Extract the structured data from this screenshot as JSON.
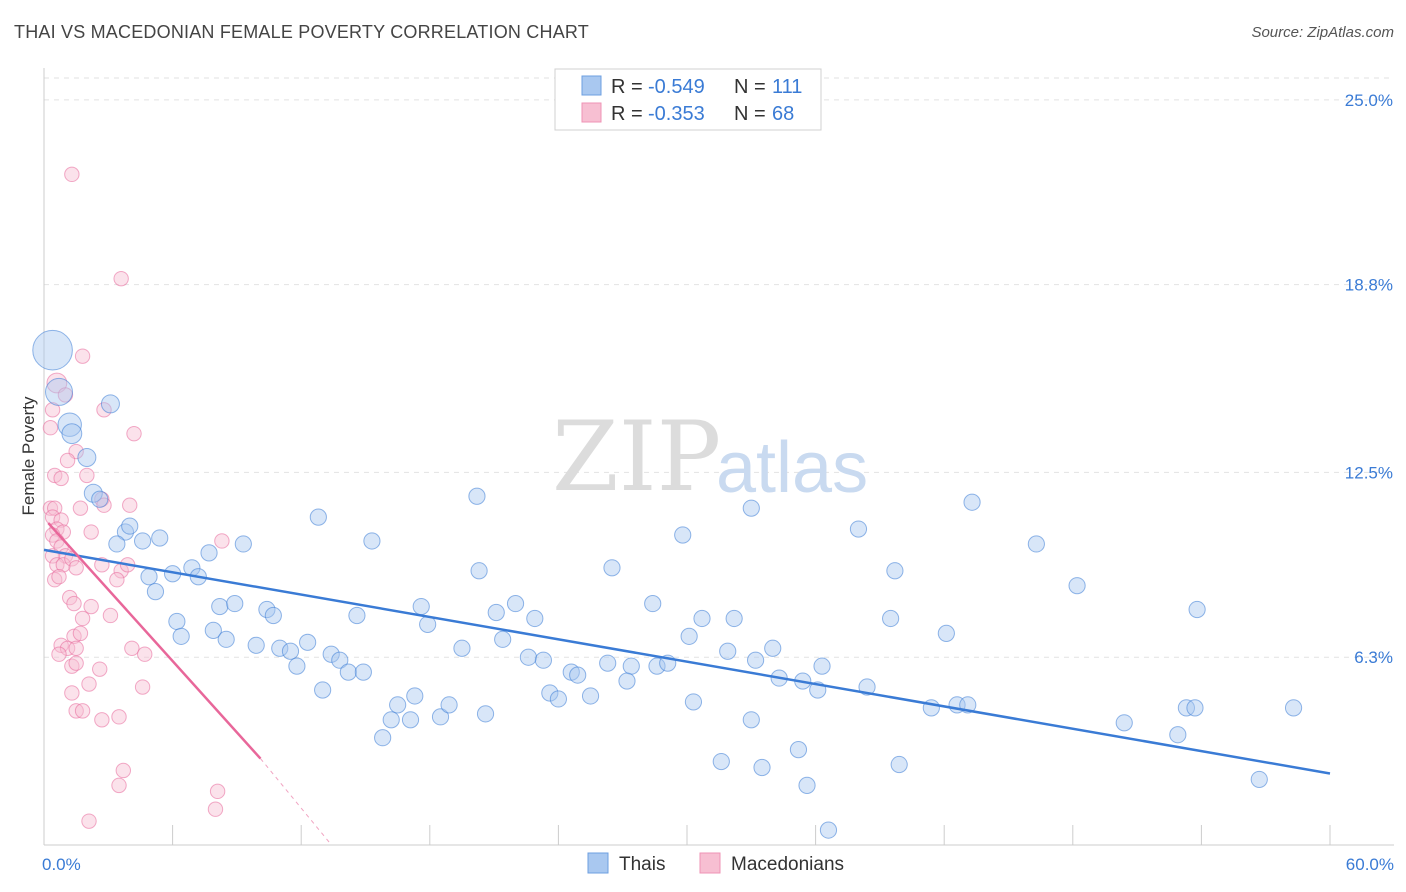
{
  "header": {
    "title": "THAI VS MACEDONIAN FEMALE POVERTY CORRELATION CHART",
    "source": "Source: ZipAtlas.com"
  },
  "watermark": {
    "zip": "ZIP",
    "atlas": "atlas"
  },
  "legend": {
    "rows": [
      {
        "r_label": "R =",
        "r_value": "-0.549",
        "n_label": "N =",
        "n_value": "111",
        "color": "#a9c8f0"
      },
      {
        "r_label": "R =",
        "r_value": "-0.353",
        "n_label": "N =",
        "n_value": "68",
        "color": "#f7bfd2"
      }
    ]
  },
  "bottom_legend": {
    "items": [
      {
        "label": "Thais",
        "color": "#a9c8f0"
      },
      {
        "label": "Macedonians",
        "color": "#f7bfd2"
      }
    ]
  },
  "chart_data": {
    "type": "scatter",
    "ylabel": "Female Poverty",
    "xlim": [
      0,
      60
    ],
    "ylim": [
      0,
      25.9
    ],
    "x_tick_labels": [
      {
        "value": 0,
        "label": "0.0%"
      },
      {
        "value": 60,
        "label": "60.0%"
      }
    ],
    "y_tick_labels": [
      {
        "value": 25.0,
        "label": "25.0%"
      },
      {
        "value": 18.8,
        "label": "18.8%"
      },
      {
        "value": 12.5,
        "label": "12.5%"
      },
      {
        "value": 6.3,
        "label": "6.3%"
      }
    ],
    "grid": true,
    "colors": {
      "thais": "#3a7bd5",
      "thais_fill": "#a9c8f0",
      "macedonians": "#e8679a",
      "macedonians_fill": "#f7bfd2"
    },
    "series": [
      {
        "name": "Thais",
        "trendline": {
          "x": [
            0,
            60
          ],
          "y": [
            9.9,
            2.4
          ]
        },
        "points": [
          [
            0.4,
            16.6,
            2.2
          ],
          [
            0.7,
            15.2,
            1.5
          ],
          [
            1.2,
            14.1,
            1.3
          ],
          [
            1.3,
            13.8,
            1.1
          ],
          [
            3.1,
            14.8,
            1.0
          ],
          [
            2.0,
            13.0,
            1.0
          ],
          [
            2.3,
            11.8,
            1.0
          ],
          [
            2.6,
            11.6,
            0.9
          ],
          [
            3.8,
            10.5,
            0.9
          ],
          [
            4.0,
            10.7,
            0.9
          ],
          [
            3.4,
            10.1,
            0.9
          ],
          [
            4.6,
            10.2,
            0.9
          ],
          [
            5.4,
            10.3,
            0.9
          ],
          [
            4.9,
            9.0,
            0.9
          ],
          [
            5.2,
            8.5,
            0.9
          ],
          [
            6.0,
            9.1,
            0.9
          ],
          [
            6.9,
            9.3,
            0.9
          ],
          [
            7.7,
            9.8,
            0.9
          ],
          [
            9.3,
            10.1,
            0.9
          ],
          [
            7.2,
            9.0,
            0.9
          ],
          [
            8.2,
            8.0,
            0.9
          ],
          [
            8.9,
            8.1,
            0.9
          ],
          [
            6.2,
            7.5,
            0.9
          ],
          [
            6.4,
            7.0,
            0.9
          ],
          [
            7.9,
            7.2,
            0.9
          ],
          [
            8.5,
            6.9,
            0.9
          ],
          [
            10.4,
            7.9,
            0.9
          ],
          [
            10.7,
            7.7,
            0.9
          ],
          [
            9.9,
            6.7,
            0.9
          ],
          [
            11.0,
            6.6,
            0.9
          ],
          [
            11.5,
            6.5,
            0.9
          ],
          [
            11.8,
            6.0,
            0.9
          ],
          [
            12.3,
            6.8,
            0.9
          ],
          [
            13.0,
            5.2,
            0.9
          ],
          [
            13.4,
            6.4,
            0.9
          ],
          [
            13.8,
            6.2,
            0.9
          ],
          [
            14.2,
            5.8,
            0.9
          ],
          [
            14.9,
            5.8,
            0.9
          ],
          [
            14.6,
            7.7,
            0.9
          ],
          [
            12.8,
            11.0,
            0.9
          ],
          [
            15.3,
            10.2,
            0.9
          ],
          [
            15.8,
            3.6,
            0.9
          ],
          [
            16.2,
            4.2,
            0.9
          ],
          [
            16.5,
            4.7,
            0.9
          ],
          [
            17.1,
            4.2,
            0.9
          ],
          [
            17.3,
            5.0,
            0.9
          ],
          [
            17.6,
            8.0,
            0.9
          ],
          [
            17.9,
            7.4,
            0.9
          ],
          [
            18.5,
            4.3,
            0.9
          ],
          [
            18.9,
            4.7,
            0.9
          ],
          [
            19.5,
            6.6,
            0.9
          ],
          [
            20.2,
            11.7,
            0.9
          ],
          [
            20.3,
            9.2,
            0.9
          ],
          [
            20.6,
            4.4,
            0.9
          ],
          [
            21.1,
            7.8,
            0.9
          ],
          [
            21.4,
            6.9,
            0.9
          ],
          [
            22.0,
            8.1,
            0.9
          ],
          [
            22.6,
            6.3,
            0.9
          ],
          [
            22.9,
            7.6,
            0.9
          ],
          [
            23.3,
            6.2,
            0.9
          ],
          [
            23.6,
            5.1,
            0.9
          ],
          [
            24.0,
            4.9,
            0.9
          ],
          [
            24.6,
            5.8,
            0.9
          ],
          [
            24.9,
            5.7,
            0.9
          ],
          [
            25.5,
            5.0,
            0.9
          ],
          [
            26.3,
            6.1,
            0.9
          ],
          [
            26.5,
            9.3,
            0.9
          ],
          [
            27.4,
            6.0,
            0.9
          ],
          [
            27.2,
            5.5,
            0.9
          ],
          [
            28.4,
            8.1,
            0.9
          ],
          [
            28.6,
            6.0,
            0.9
          ],
          [
            29.1,
            6.1,
            0.9
          ],
          [
            29.8,
            10.4,
            0.9
          ],
          [
            30.1,
            7.0,
            0.9
          ],
          [
            30.3,
            4.8,
            0.9
          ],
          [
            30.7,
            7.6,
            0.9
          ],
          [
            31.6,
            2.8,
            0.9
          ],
          [
            31.9,
            6.5,
            0.9
          ],
          [
            32.2,
            7.6,
            0.9
          ],
          [
            33.0,
            11.3,
            0.9
          ],
          [
            33.2,
            6.2,
            0.9
          ],
          [
            33.0,
            4.2,
            0.9
          ],
          [
            33.5,
            2.6,
            0.9
          ],
          [
            34.0,
            6.6,
            0.9
          ],
          [
            34.3,
            5.6,
            0.9
          ],
          [
            35.2,
            3.2,
            0.9
          ],
          [
            35.4,
            5.5,
            0.9
          ],
          [
            35.6,
            2.0,
            0.9
          ],
          [
            36.1,
            5.2,
            0.9
          ],
          [
            36.3,
            6.0,
            0.9
          ],
          [
            36.6,
            0.5,
            0.9
          ],
          [
            38.0,
            10.6,
            0.9
          ],
          [
            38.4,
            5.3,
            0.9
          ],
          [
            39.5,
            7.6,
            0.9
          ],
          [
            39.7,
            9.2,
            0.9
          ],
          [
            39.9,
            2.7,
            0.9
          ],
          [
            41.4,
            4.6,
            0.9
          ],
          [
            42.1,
            7.1,
            0.9
          ],
          [
            42.6,
            4.7,
            0.9
          ],
          [
            43.1,
            4.7,
            0.9
          ],
          [
            43.3,
            11.5,
            0.9
          ],
          [
            46.3,
            10.1,
            0.9
          ],
          [
            48.2,
            8.7,
            0.9
          ],
          [
            50.4,
            4.1,
            0.9
          ],
          [
            52.9,
            3.7,
            0.9
          ],
          [
            53.3,
            4.6,
            0.9
          ],
          [
            53.7,
            4.6,
            0.9
          ],
          [
            53.8,
            7.9,
            0.9
          ],
          [
            56.7,
            2.2,
            0.9
          ],
          [
            58.3,
            4.6,
            0.9
          ]
        ]
      },
      {
        "name": "Macedonians",
        "trendline": {
          "x": [
            0.2,
            10.1
          ],
          "y": [
            10.8,
            2.9
          ],
          "dashed_to": {
            "x": 13.3,
            "y": 0.1
          }
        },
        "points": [
          [
            1.3,
            22.5,
            0.8
          ],
          [
            3.6,
            19.0,
            0.8
          ],
          [
            1.8,
            16.4,
            0.8
          ],
          [
            0.6,
            15.5,
            1.1
          ],
          [
            1.0,
            15.1,
            0.8
          ],
          [
            0.4,
            14.6,
            0.8
          ],
          [
            0.3,
            14.0,
            0.8
          ],
          [
            2.8,
            14.6,
            0.8
          ],
          [
            4.2,
            13.8,
            0.8
          ],
          [
            1.5,
            13.2,
            0.8
          ],
          [
            1.1,
            12.9,
            0.8
          ],
          [
            0.5,
            12.4,
            0.8
          ],
          [
            0.8,
            12.3,
            0.8
          ],
          [
            2.0,
            12.4,
            0.8
          ],
          [
            0.3,
            11.3,
            0.8
          ],
          [
            0.5,
            11.3,
            0.8
          ],
          [
            0.4,
            11.0,
            0.8
          ],
          [
            0.8,
            10.9,
            0.8
          ],
          [
            1.7,
            11.3,
            0.8
          ],
          [
            2.7,
            11.6,
            0.8
          ],
          [
            2.8,
            11.4,
            0.8
          ],
          [
            4.0,
            11.4,
            0.8
          ],
          [
            0.6,
            10.6,
            0.8
          ],
          [
            0.9,
            10.5,
            0.8
          ],
          [
            0.4,
            10.4,
            0.8
          ],
          [
            0.6,
            10.2,
            0.8
          ],
          [
            2.2,
            10.5,
            0.8
          ],
          [
            0.8,
            10.0,
            0.8
          ],
          [
            1.0,
            9.7,
            0.8
          ],
          [
            0.4,
            9.7,
            0.8
          ],
          [
            0.6,
            9.4,
            0.8
          ],
          [
            0.9,
            9.4,
            0.8
          ],
          [
            1.3,
            9.6,
            0.8
          ],
          [
            1.5,
            9.3,
            0.8
          ],
          [
            0.5,
            8.9,
            0.8
          ],
          [
            0.7,
            9.0,
            0.8
          ],
          [
            2.7,
            9.4,
            0.8
          ],
          [
            3.6,
            9.2,
            0.8
          ],
          [
            3.4,
            8.9,
            0.8
          ],
          [
            3.9,
            9.4,
            0.8
          ],
          [
            8.3,
            10.2,
            0.8
          ],
          [
            1.2,
            8.3,
            0.8
          ],
          [
            1.4,
            8.1,
            0.8
          ],
          [
            2.2,
            8.0,
            0.8
          ],
          [
            1.8,
            7.6,
            0.8
          ],
          [
            3.1,
            7.7,
            0.8
          ],
          [
            1.4,
            7.0,
            0.8
          ],
          [
            1.7,
            7.1,
            0.8
          ],
          [
            0.8,
            6.7,
            0.8
          ],
          [
            1.1,
            6.6,
            0.8
          ],
          [
            1.5,
            6.6,
            0.8
          ],
          [
            4.1,
            6.6,
            0.8
          ],
          [
            4.7,
            6.4,
            0.8
          ],
          [
            0.7,
            6.4,
            0.8
          ],
          [
            1.3,
            6.0,
            0.8
          ],
          [
            1.5,
            6.1,
            0.8
          ],
          [
            2.6,
            5.9,
            0.8
          ],
          [
            2.1,
            5.4,
            0.8
          ],
          [
            4.6,
            5.3,
            0.8
          ],
          [
            1.3,
            5.1,
            0.8
          ],
          [
            1.5,
            4.5,
            0.8
          ],
          [
            1.8,
            4.5,
            0.8
          ],
          [
            2.7,
            4.2,
            0.8
          ],
          [
            3.5,
            4.3,
            0.8
          ],
          [
            3.7,
            2.5,
            0.8
          ],
          [
            3.5,
            2.0,
            0.8
          ],
          [
            8.1,
            1.8,
            0.8
          ],
          [
            8.0,
            1.2,
            0.8
          ],
          [
            2.1,
            0.8,
            0.8
          ]
        ]
      }
    ]
  }
}
